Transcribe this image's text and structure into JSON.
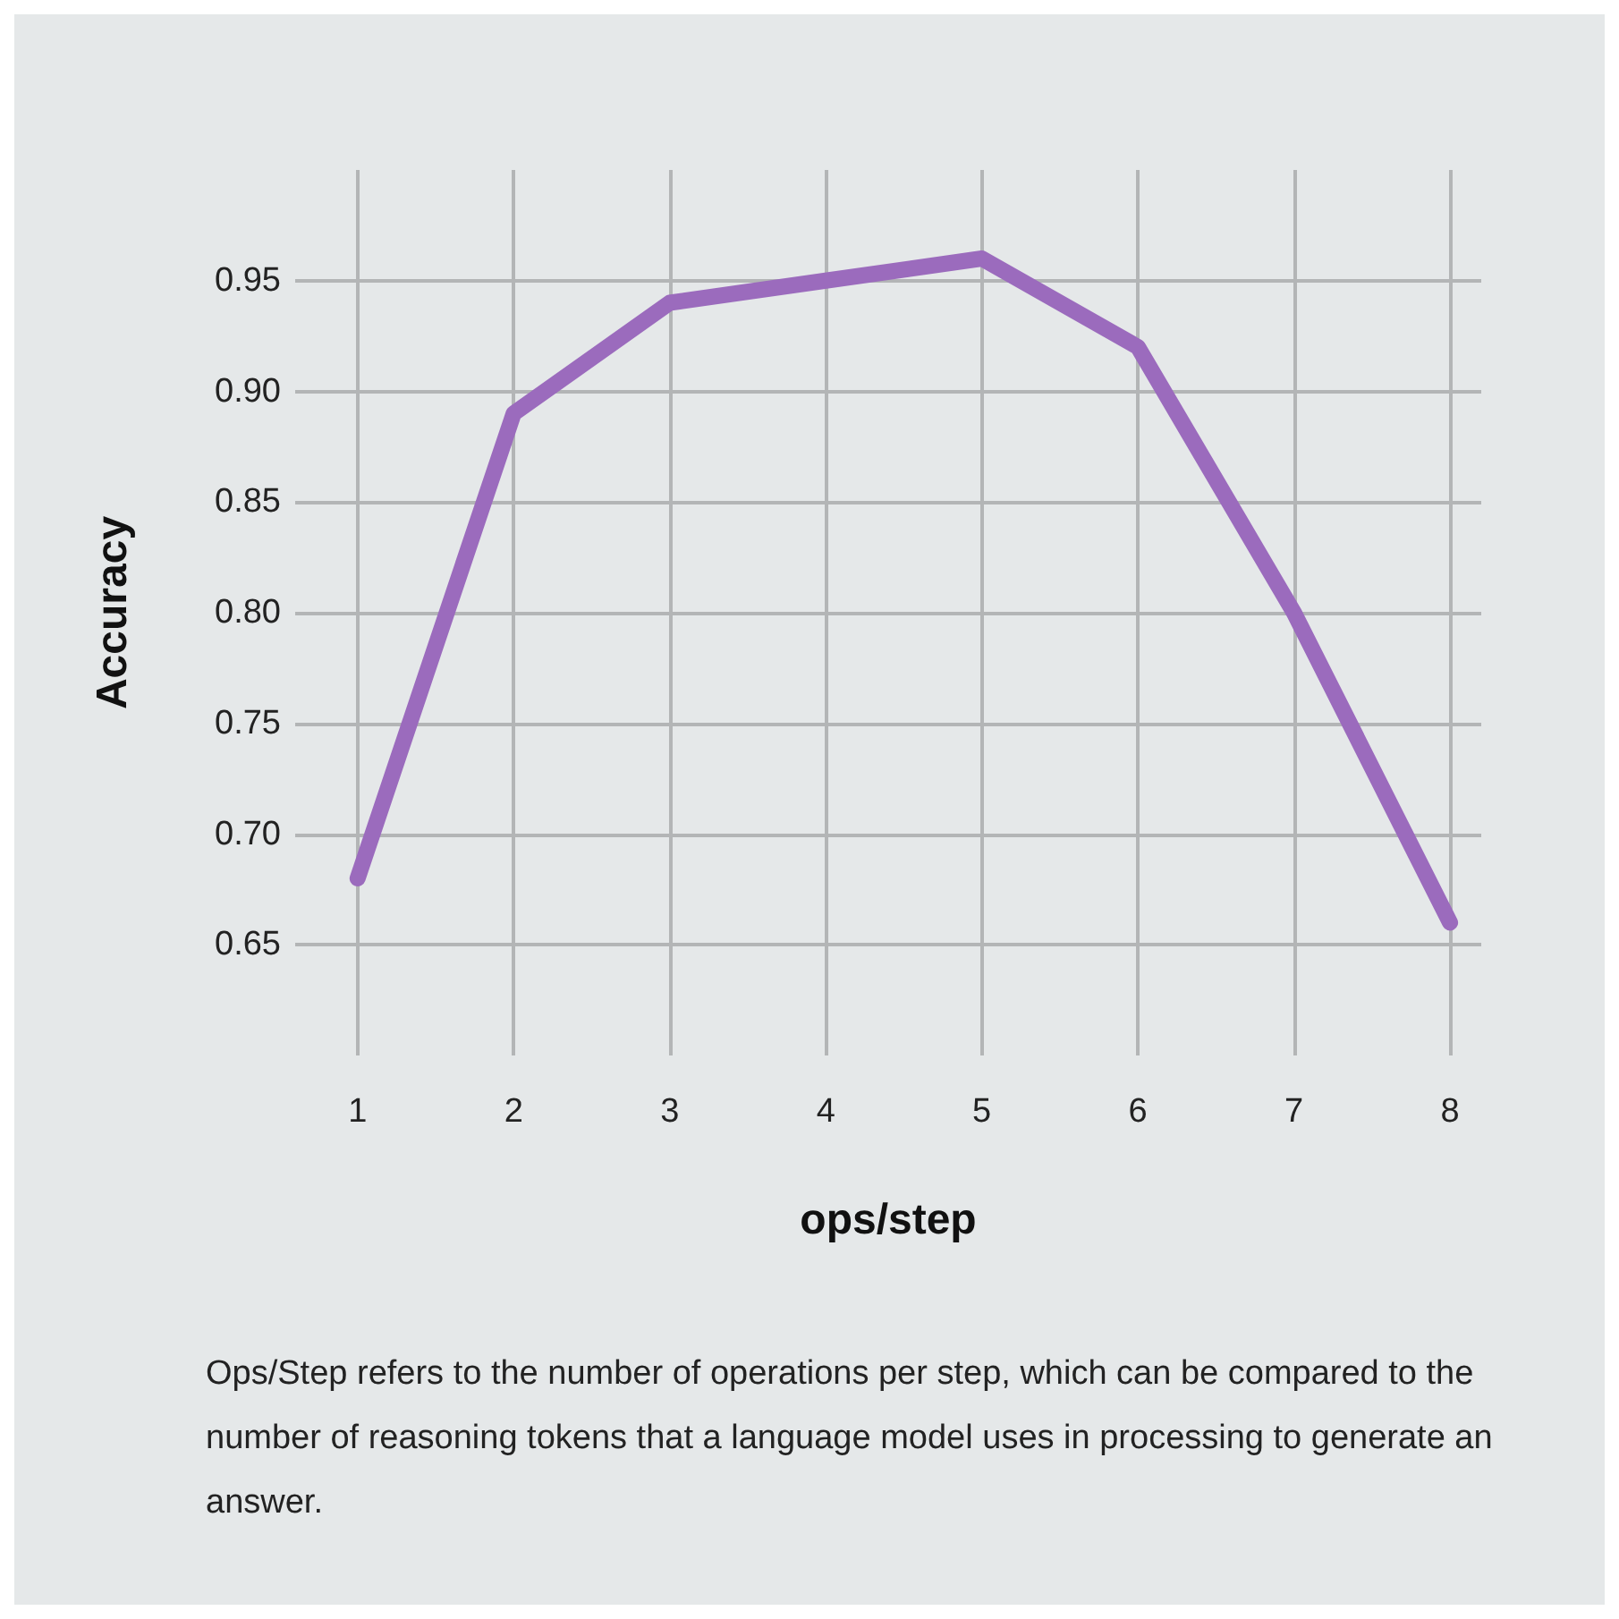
{
  "chart_data": {
    "type": "line",
    "xlabel": "ops/step",
    "ylabel": "Accuracy",
    "x": [
      1,
      2,
      3,
      4,
      5,
      6,
      7,
      8
    ],
    "series": [
      {
        "color": "#9b6bbd",
        "values": [
          0.68,
          0.89,
          0.94,
          0.95,
          0.96,
          0.92,
          0.8,
          0.66
        ]
      }
    ],
    "xlim": [
      0.6,
      8.2
    ],
    "xticks": [
      1,
      2,
      3,
      4,
      5,
      6,
      7,
      8
    ],
    "ylim": [
      0.6,
      1.0
    ],
    "yticks": [
      {
        "value": 0.65,
        "label": "0.65"
      },
      {
        "value": 0.7,
        "label": "0.70"
      },
      {
        "value": 0.75,
        "label": "0.75"
      },
      {
        "value": 0.8,
        "label": "0.80"
      },
      {
        "value": 0.85,
        "label": "0.85"
      },
      {
        "value": 0.9,
        "label": "0.90"
      },
      {
        "value": 0.95,
        "label": "0.95"
      }
    ],
    "grid": true,
    "line_style": "solid",
    "annotations": [
      "Ops/Step refers to the number of operations per step, which can be compared to the number of reasoning tokens that a language model uses in processing to generate an answer."
    ]
  }
}
